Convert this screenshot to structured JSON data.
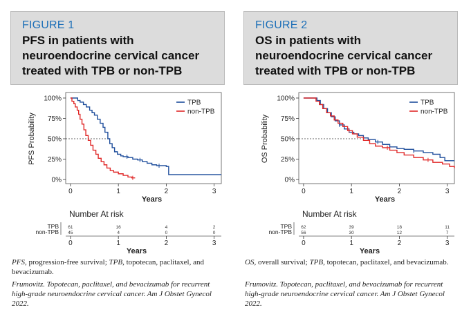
{
  "figures": [
    {
      "label": "FIGURE 1",
      "title_lines": [
        "PFS in patients with",
        "neuroendocrine cervical cancer",
        "treated with TPB or non-TPB"
      ],
      "caption": {
        "parts": [
          {
            "text": "PFS",
            "italic": true
          },
          {
            "text": ", progression-free survival; ",
            "italic": false
          },
          {
            "text": "TPB",
            "italic": true
          },
          {
            "text": ", topotecan, paclitaxel, and bevacizumab.",
            "italic": false
          }
        ]
      },
      "citation": "Frumovitz. Topotecan, paclitaxel, and bevacizumab for recurrent high-grade neuroendocrine cervical cancer. Am J Obstet Gynecol 2022."
    },
    {
      "label": "FIGURE 2",
      "title_lines": [
        "OS in patients with",
        "neuroendocrine cervical cancer",
        "treated with TPB or non-TPB"
      ],
      "caption": {
        "parts": [
          {
            "text": "OS",
            "italic": true
          },
          {
            "text": ", overall survival; ",
            "italic": false
          },
          {
            "text": "TPB",
            "italic": true
          },
          {
            "text": ", topotecan, paclitaxel, and bevacizumab.",
            "italic": false
          }
        ]
      },
      "citation": "Frumovitz. Topotecan, paclitaxel, and bevacizumab for recurrent high-grade neuroendocrine cervical cancer. Am J Obstet Gynecol 2022."
    }
  ],
  "chart_data": [
    {
      "type": "line",
      "subtype": "kaplan-meier",
      "ylabel": "PFS Probability",
      "xlabel": "Years",
      "xlim": [
        -0.1,
        3.15
      ],
      "ylim": [
        0,
        1
      ],
      "xticks": [
        0,
        1,
        2,
        3
      ],
      "yticks": [
        0,
        0.25,
        0.5,
        0.75,
        1
      ],
      "ytick_labels": [
        "0%",
        "25%",
        "50%",
        "75%",
        "100%"
      ],
      "median_line_y": 0.5,
      "median_line_x_end": 0.78,
      "legend": {
        "position": "top-right",
        "entries": [
          "TPB",
          "non-TPB"
        ]
      },
      "series": [
        {
          "name": "TPB",
          "color": "#1f4e9c",
          "x": [
            0,
            0.1,
            0.15,
            0.2,
            0.27,
            0.33,
            0.4,
            0.45,
            0.5,
            0.56,
            0.62,
            0.68,
            0.72,
            0.78,
            0.82,
            0.87,
            0.92,
            0.98,
            1.05,
            1.1,
            1.2,
            1.3,
            1.4,
            1.5,
            1.6,
            1.7,
            1.8,
            1.9,
            2.0,
            2.05,
            3.15
          ],
          "y": [
            1.0,
            1.0,
            0.97,
            0.95,
            0.92,
            0.89,
            0.85,
            0.82,
            0.79,
            0.74,
            0.69,
            0.64,
            0.58,
            0.5,
            0.44,
            0.39,
            0.34,
            0.31,
            0.29,
            0.28,
            0.27,
            0.25,
            0.24,
            0.22,
            0.2,
            0.18,
            0.17,
            0.17,
            0.16,
            0.06,
            0.06
          ],
          "censor_x": [
            1.18,
            1.45,
            1.85
          ]
        },
        {
          "name": "non-TPB",
          "color": "#e02828",
          "x": [
            0,
            0.03,
            0.07,
            0.1,
            0.14,
            0.17,
            0.2,
            0.24,
            0.28,
            0.32,
            0.37,
            0.42,
            0.47,
            0.53,
            0.58,
            0.64,
            0.7,
            0.76,
            0.83,
            0.9,
            1.0,
            1.1,
            1.2,
            1.28,
            1.35
          ],
          "y": [
            1.0,
            0.96,
            0.93,
            0.89,
            0.85,
            0.8,
            0.74,
            0.68,
            0.61,
            0.54,
            0.48,
            0.42,
            0.36,
            0.31,
            0.26,
            0.22,
            0.18,
            0.14,
            0.11,
            0.09,
            0.07,
            0.05,
            0.03,
            0.02,
            0.02
          ],
          "censor_x": [
            1.3
          ]
        }
      ],
      "risk_table": {
        "title": "Number At risk",
        "xlabel": "Years",
        "times": [
          0,
          1,
          2,
          3
        ],
        "time_labels": [
          "0",
          "1",
          "2",
          "3"
        ],
        "rows": [
          {
            "name": "TPB",
            "values": [
              "61",
              "16",
              "4",
              "2"
            ]
          },
          {
            "name": "non-TPB",
            "values": [
              "45",
              "4",
              "0",
              "0"
            ]
          }
        ]
      }
    },
    {
      "type": "line",
      "subtype": "kaplan-meier",
      "ylabel": "OS Probability",
      "xlabel": "Years",
      "xlim": [
        -0.1,
        3.15
      ],
      "ylim": [
        0,
        1
      ],
      "xticks": [
        0,
        1,
        2,
        3
      ],
      "yticks": [
        0,
        0.25,
        0.5,
        0.75,
        1
      ],
      "ytick_labels": [
        "0%",
        "25%",
        "50%",
        "75%",
        "100%"
      ],
      "median_line_y": 0.5,
      "median_line_x_end": 1.2,
      "legend": {
        "position": "top-right",
        "entries": [
          "TPB",
          "non-TPB"
        ]
      },
      "series": [
        {
          "name": "TPB",
          "color": "#1f4e9c",
          "x": [
            0,
            0.2,
            0.28,
            0.35,
            0.42,
            0.5,
            0.58,
            0.66,
            0.75,
            0.85,
            0.95,
            1.05,
            1.15,
            1.25,
            1.35,
            1.5,
            1.65,
            1.8,
            1.95,
            2.1,
            2.3,
            2.5,
            2.7,
            2.85,
            2.95,
            3.15
          ],
          "y": [
            1.0,
            1.0,
            0.97,
            0.92,
            0.87,
            0.82,
            0.77,
            0.72,
            0.67,
            0.62,
            0.58,
            0.56,
            0.54,
            0.51,
            0.49,
            0.46,
            0.43,
            0.4,
            0.38,
            0.37,
            0.35,
            0.33,
            0.31,
            0.27,
            0.23,
            0.23
          ],
          "censor_x": [
            0.75,
            1.55,
            2.3
          ]
        },
        {
          "name": "non-TPB",
          "color": "#e02828",
          "x": [
            0,
            0.18,
            0.26,
            0.33,
            0.4,
            0.48,
            0.56,
            0.64,
            0.72,
            0.82,
            0.92,
            1.02,
            1.12,
            1.25,
            1.38,
            1.5,
            1.65,
            1.8,
            1.95,
            2.1,
            2.3,
            2.5,
            2.7,
            2.9,
            3.05,
            3.15
          ],
          "y": [
            1.0,
            1.0,
            0.96,
            0.92,
            0.87,
            0.82,
            0.78,
            0.73,
            0.69,
            0.65,
            0.6,
            0.56,
            0.52,
            0.48,
            0.44,
            0.41,
            0.39,
            0.36,
            0.33,
            0.3,
            0.27,
            0.24,
            0.21,
            0.19,
            0.16,
            0.14
          ],
          "censor_x": [
            0.95,
            1.75,
            2.6
          ]
        }
      ],
      "risk_table": {
        "title": "Number At risk",
        "xlabel": "Years",
        "times": [
          0,
          1,
          2,
          3
        ],
        "time_labels": [
          "0",
          "1",
          "2",
          "3"
        ],
        "rows": [
          {
            "name": "TPB",
            "values": [
              "62",
              "39",
              "18",
              "11"
            ]
          },
          {
            "name": "non-TPB",
            "values": [
              "56",
              "30",
              "12",
              "7"
            ]
          }
        ]
      }
    }
  ]
}
